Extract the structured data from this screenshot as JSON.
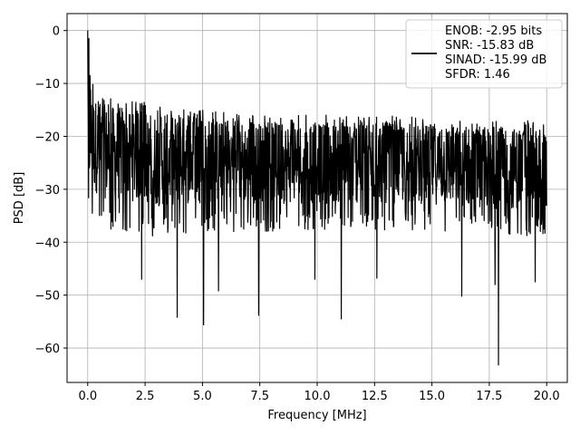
{
  "chart_data": {
    "type": "line",
    "title": "",
    "xlabel": "Frequency [MHz]",
    "ylabel": "PSD [dB]",
    "xlim": [
      -0.9,
      20.9
    ],
    "ylim": [
      -66.5,
      3.2
    ],
    "xticks": [
      0.0,
      2.5,
      5.0,
      7.5,
      10.0,
      12.5,
      15.0,
      17.5,
      20.0
    ],
    "xtick_labels": [
      "0.0",
      "2.5",
      "5.0",
      "7.5",
      "10.0",
      "12.5",
      "15.0",
      "17.5",
      "20.0"
    ],
    "yticks": [
      0,
      -10,
      -20,
      -30,
      -40,
      -50,
      -60
    ],
    "ytick_labels": [
      "0",
      "−10",
      "−20",
      "−30",
      "−40",
      "−50",
      "−60"
    ],
    "grid": true,
    "legend_position": "top-right",
    "series": [
      {
        "color": "#000000",
        "legend_lines": [
          "ENOB: -2.95 bits",
          "SNR: -15.83 dB",
          "SINAD: -15.99 dB",
          "SFDR: 1.46"
        ],
        "envelope": {
          "description_units": "upper/lower trace envelope in dB vs MHz",
          "x": [
            0.0,
            0.5,
            1.0,
            2.0,
            3.0,
            5.0,
            7.5,
            10.0,
            12.5,
            15.0,
            17.5,
            20.0
          ],
          "upper": [
            -9,
            -12,
            -12.5,
            -13,
            -14,
            -15,
            -16,
            -16,
            -16,
            -16.5,
            -17,
            -17
          ],
          "lower": [
            -35,
            -37,
            -38,
            -38,
            -39,
            -38,
            -38,
            -38,
            -38,
            -38,
            -39,
            -39
          ]
        },
        "spikes": [
          {
            "x": 0.0,
            "y": 0.0
          },
          {
            "x": 0.05,
            "y": -1.5
          },
          {
            "x": 0.1,
            "y": -8.5
          },
          {
            "x": 0.22,
            "y": -10.2
          },
          {
            "x": 2.35,
            "y": -47.0
          },
          {
            "x": 3.9,
            "y": -54.2
          },
          {
            "x": 5.05,
            "y": -55.6
          },
          {
            "x": 5.7,
            "y": -49.2
          },
          {
            "x": 7.45,
            "y": -53.8
          },
          {
            "x": 9.9,
            "y": -47.0
          },
          {
            "x": 11.05,
            "y": -54.5
          },
          {
            "x": 12.6,
            "y": -46.8
          },
          {
            "x": 16.3,
            "y": -50.2
          },
          {
            "x": 17.75,
            "y": -48.0
          },
          {
            "x": 17.9,
            "y": -63.2
          },
          {
            "x": 19.5,
            "y": -47.5
          }
        ]
      }
    ]
  }
}
